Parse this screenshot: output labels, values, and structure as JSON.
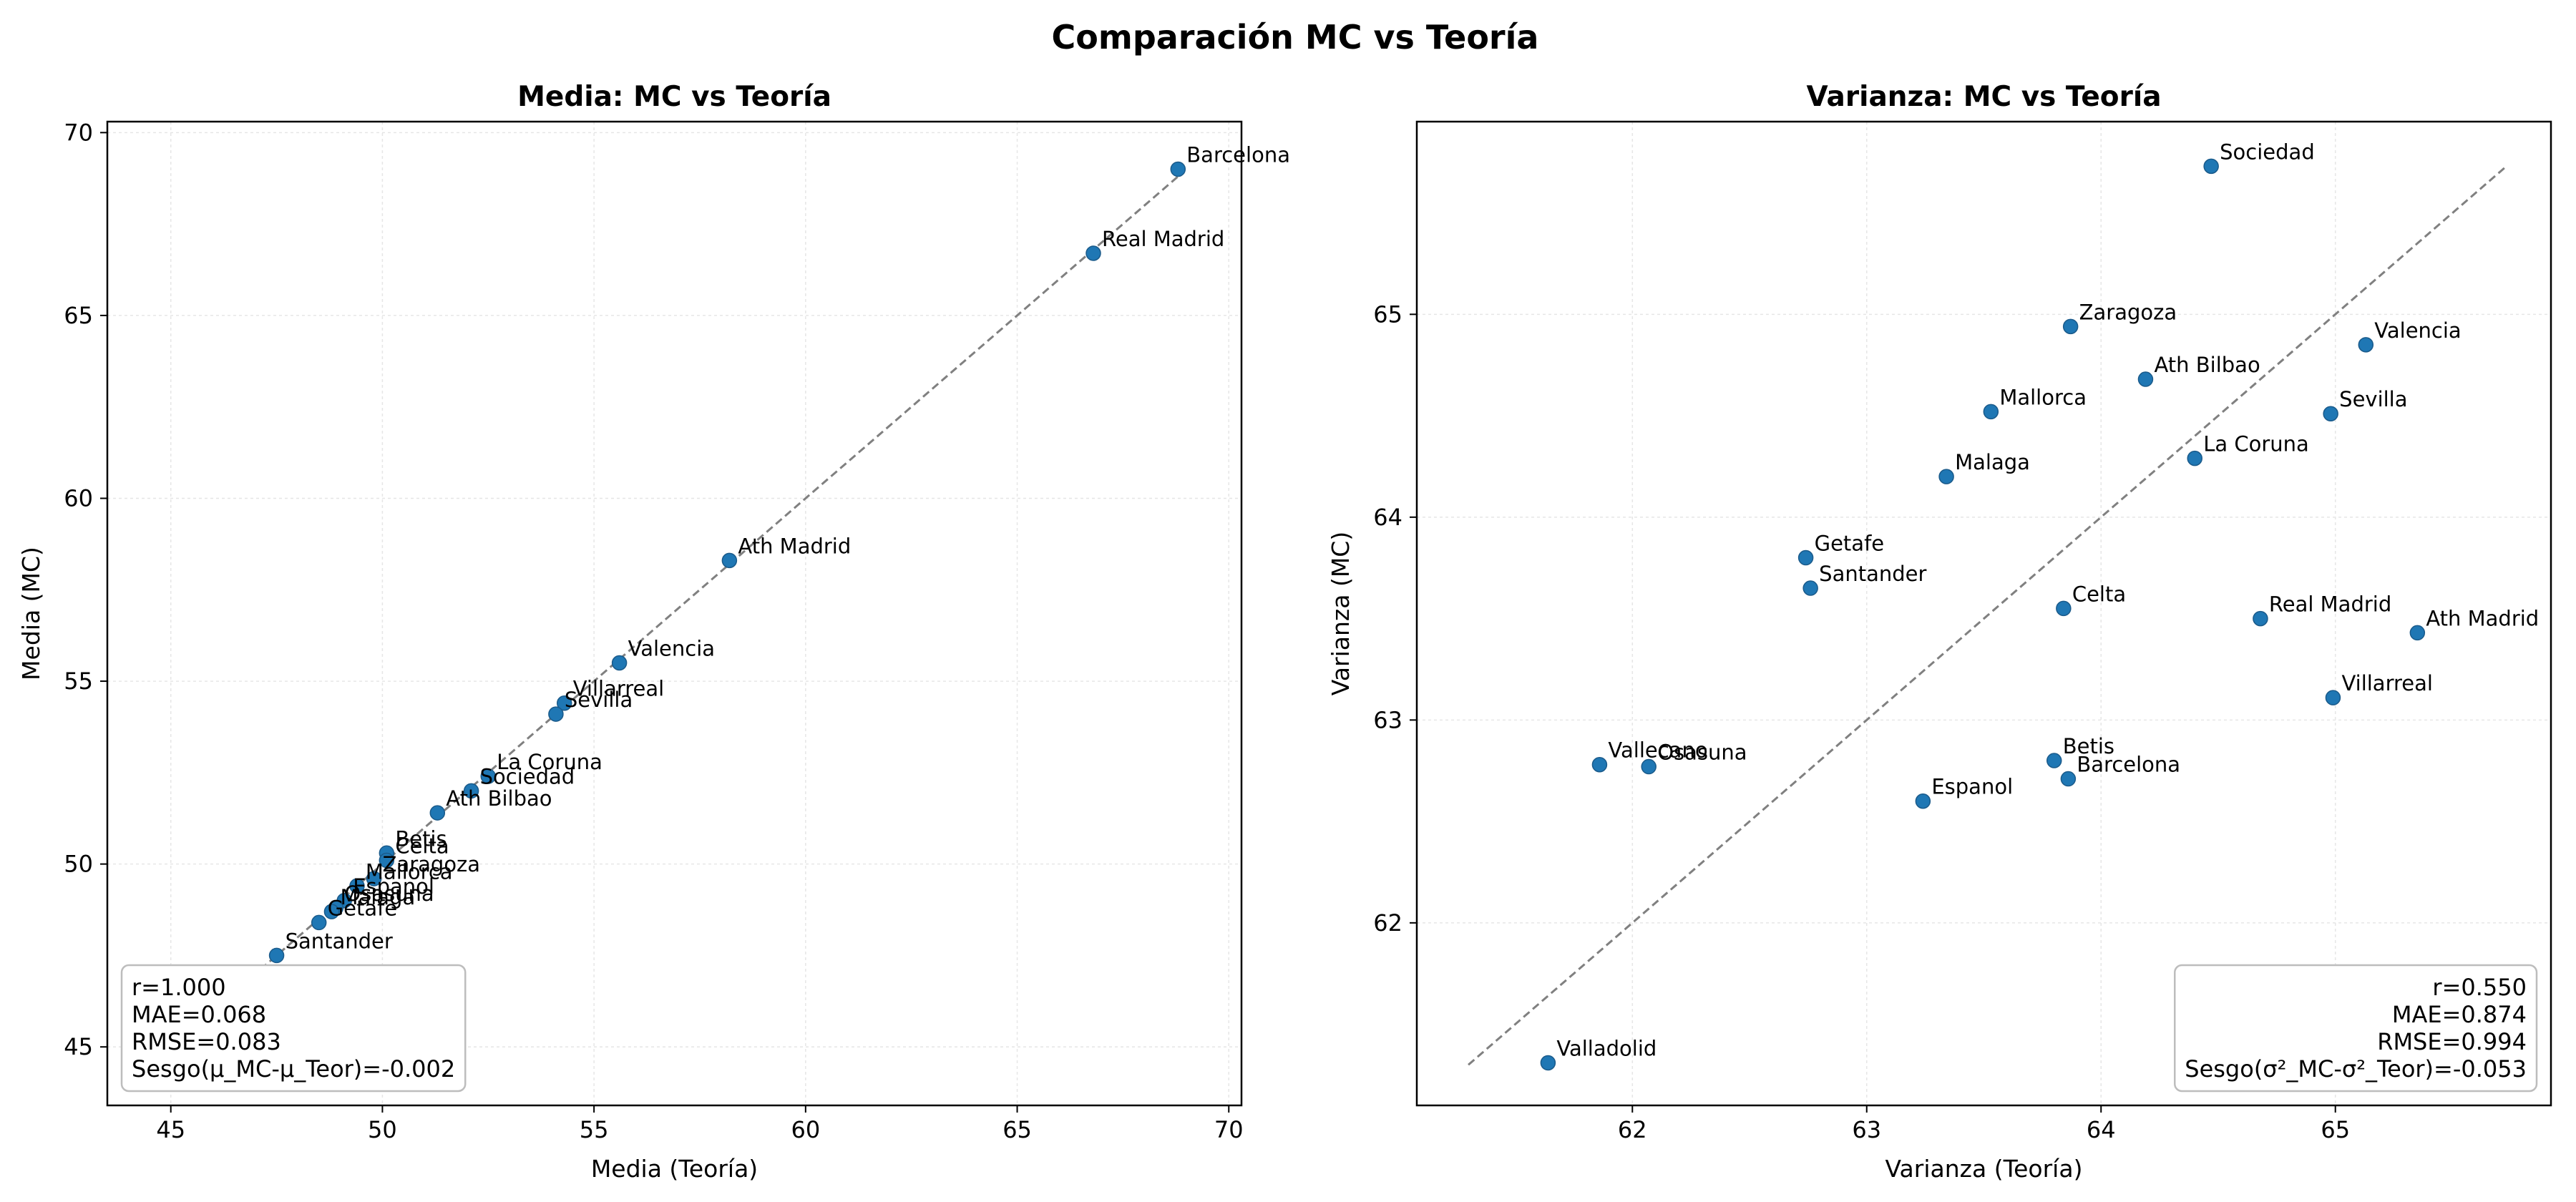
{
  "figure": {
    "title": "Comparación MC vs Teoría"
  },
  "chart_data": [
    {
      "type": "scatter",
      "title": "Media: MC vs Teoría",
      "xlabel": "Media (Teoría)",
      "ylabel": "Media (MC)",
      "xlim": [
        43.5,
        70.3
      ],
      "ylim": [
        43.4,
        70.3
      ],
      "xticks": [
        45,
        50,
        55,
        60,
        65,
        70
      ],
      "yticks": [
        45,
        50,
        55,
        60,
        65,
        70
      ],
      "grid": true,
      "identity_line": [
        46.9,
        68.8
      ],
      "color": "#1f77b4",
      "points": [
        {
          "label": "Barcelona",
          "x": 68.8,
          "y": 69.0
        },
        {
          "label": "Real Madrid",
          "x": 66.8,
          "y": 66.7
        },
        {
          "label": "Ath Madrid",
          "x": 58.2,
          "y": 58.3
        },
        {
          "label": "Valencia",
          "x": 55.6,
          "y": 55.5
        },
        {
          "label": "Villarreal",
          "x": 54.3,
          "y": 54.4
        },
        {
          "label": "Sevilla",
          "x": 54.1,
          "y": 54.1
        },
        {
          "label": "La Coruna",
          "x": 52.5,
          "y": 52.4
        },
        {
          "label": "Sociedad",
          "x": 52.1,
          "y": 52.0
        },
        {
          "label": "Ath Bilbao",
          "x": 51.3,
          "y": 51.4
        },
        {
          "label": "Betis",
          "x": 50.1,
          "y": 50.3
        },
        {
          "label": "Celta",
          "x": 50.1,
          "y": 50.1
        },
        {
          "label": "Zaragoza",
          "x": 49.8,
          "y": 49.6
        },
        {
          "label": "Mallorca",
          "x": 49.4,
          "y": 49.4
        },
        {
          "label": "Espanol",
          "x": 49.1,
          "y": 49.0
        },
        {
          "label": "Osasuna",
          "x": 48.9,
          "y": 48.8
        },
        {
          "label": "Malaga",
          "x": 48.8,
          "y": 48.7
        },
        {
          "label": "Getafe",
          "x": 48.5,
          "y": 48.4
        },
        {
          "label": "Santander",
          "x": 47.5,
          "y": 47.5
        }
      ],
      "stats": {
        "align": "left",
        "position": "lower-left",
        "lines": [
          "r=1.000",
          "MAE=0.068",
          "RMSE=0.083",
          "Sesgo(μ_MC-μ_Teor)=-0.002"
        ]
      }
    },
    {
      "type": "scatter",
      "title": "Varianza: MC vs Teoría",
      "xlabel": "Varianza (Teoría)",
      "ylabel": "Varianza (MC)",
      "xlim": [
        61.08,
        65.92
      ],
      "ylim": [
        61.1,
        65.95
      ],
      "xticks": [
        62,
        63,
        64,
        65
      ],
      "yticks": [
        62,
        63,
        64,
        65
      ],
      "grid": true,
      "identity_line": [
        61.3,
        65.73
      ],
      "color": "#1f77b4",
      "points": [
        {
          "label": "Sociedad",
          "x": 64.47,
          "y": 65.73
        },
        {
          "label": "Zaragoza",
          "x": 63.87,
          "y": 64.94
        },
        {
          "label": "Valencia",
          "x": 65.13,
          "y": 64.85
        },
        {
          "label": "Ath Bilbao",
          "x": 64.19,
          "y": 64.68
        },
        {
          "label": "Mallorca",
          "x": 63.53,
          "y": 64.52
        },
        {
          "label": "Sevilla",
          "x": 64.98,
          "y": 64.51
        },
        {
          "label": "La Coruna",
          "x": 64.4,
          "y": 64.29
        },
        {
          "label": "Malaga",
          "x": 63.34,
          "y": 64.2
        },
        {
          "label": "Getafe",
          "x": 62.74,
          "y": 63.8
        },
        {
          "label": "Santander",
          "x": 62.76,
          "y": 63.65
        },
        {
          "label": "Celta",
          "x": 63.84,
          "y": 63.55
        },
        {
          "label": "Real Madrid",
          "x": 64.68,
          "y": 63.5
        },
        {
          "label": "Ath Madrid",
          "x": 65.35,
          "y": 63.43
        },
        {
          "label": "Villarreal",
          "x": 64.99,
          "y": 63.11
        },
        {
          "label": "Betis",
          "x": 63.8,
          "y": 62.8
        },
        {
          "label": "Vallecano",
          "x": 61.86,
          "y": 62.78
        },
        {
          "label": "Osasuna",
          "x": 62.07,
          "y": 62.77
        },
        {
          "label": "Barcelona",
          "x": 63.86,
          "y": 62.71
        },
        {
          "label": "Espanol",
          "x": 63.24,
          "y": 62.6
        },
        {
          "label": "Valladolid",
          "x": 61.64,
          "y": 61.31
        }
      ],
      "stats": {
        "align": "right",
        "position": "lower-right",
        "lines": [
          "r=0.550",
          "MAE=0.874",
          "RMSE=0.994",
          "Sesgo(σ²_MC-σ²_Teor)=-0.053"
        ]
      }
    }
  ]
}
